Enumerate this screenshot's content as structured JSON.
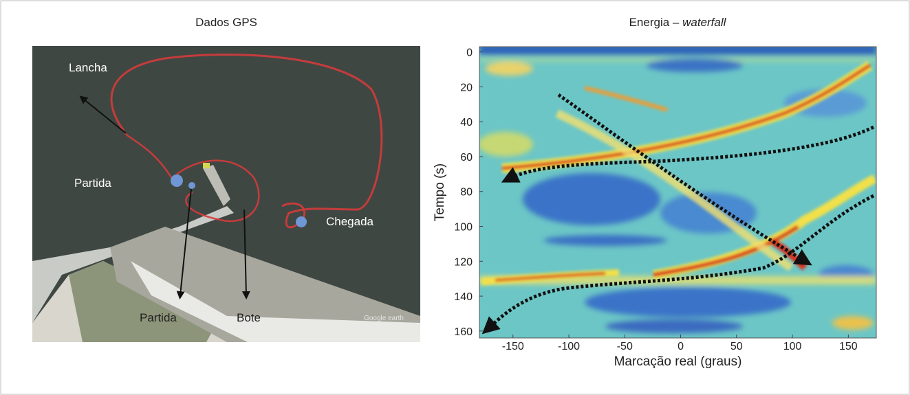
{
  "left_panel": {
    "title": "Dados GPS",
    "labels": [
      "Lancha",
      "Partida",
      "Chegada",
      "Partida",
      "Bote"
    ],
    "watermark": "Google earth"
  },
  "chart_data": {
    "type": "heatmap",
    "title": "Energia – ",
    "title_emphasis": "waterfall",
    "x_label": "Marcação real (graus)",
    "y_label": "Tempo (s)",
    "xlim": [
      -180,
      175
    ],
    "ylim": [
      -3,
      164
    ],
    "xticks": [
      -150,
      -100,
      -50,
      0,
      50,
      100,
      150
    ],
    "yticks": [
      0,
      20,
      40,
      60,
      80,
      100,
      120,
      140,
      160
    ],
    "y_inverted": true
  }
}
